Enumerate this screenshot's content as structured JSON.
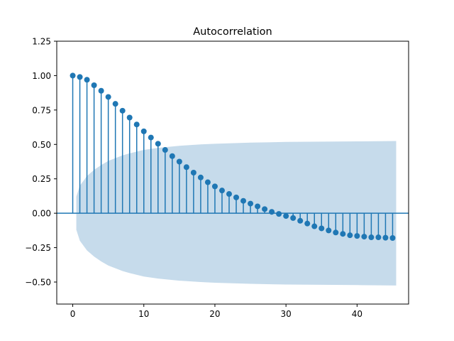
{
  "chart_data": {
    "type": "stem",
    "title": "Autocorrelation",
    "xlabel": "",
    "ylabel": "",
    "xlim": [
      -2.25,
      47.25
    ],
    "ylim": [
      -0.66,
      1.25
    ],
    "xticks": [
      0,
      10,
      20,
      30,
      40
    ],
    "yticks": [
      -0.5,
      -0.25,
      0.0,
      0.25,
      0.5,
      0.75,
      1.0,
      1.25
    ],
    "ytick_labels": [
      "−0.50",
      "−0.25",
      "0.00",
      "0.25",
      "0.50",
      "0.75",
      "1.00",
      "1.25"
    ],
    "grid": false,
    "lags": [
      0,
      1,
      2,
      3,
      4,
      5,
      6,
      7,
      8,
      9,
      10,
      11,
      12,
      13,
      14,
      15,
      16,
      17,
      18,
      19,
      20,
      21,
      22,
      23,
      24,
      25,
      26,
      27,
      28,
      29,
      30,
      31,
      32,
      33,
      34,
      35,
      36,
      37,
      38,
      39,
      40,
      41,
      42,
      43,
      44,
      45
    ],
    "acf": [
      1.0,
      0.99,
      0.97,
      0.93,
      0.89,
      0.845,
      0.795,
      0.745,
      0.695,
      0.645,
      0.595,
      0.55,
      0.505,
      0.46,
      0.415,
      0.375,
      0.335,
      0.295,
      0.26,
      0.225,
      0.195,
      0.165,
      0.14,
      0.115,
      0.09,
      0.07,
      0.05,
      0.03,
      0.01,
      -0.005,
      -0.02,
      -0.035,
      -0.055,
      -0.075,
      -0.095,
      -0.11,
      -0.125,
      -0.14,
      -0.15,
      -0.16,
      -0.165,
      -0.17,
      -0.175,
      -0.175,
      -0.178,
      -0.18
    ],
    "confint_x": [
      0.5,
      1,
      2,
      3,
      4,
      5,
      6,
      7,
      8,
      10,
      12,
      15,
      18,
      20,
      25,
      30,
      35,
      40,
      45.5
    ],
    "confint_upper": [
      0.12,
      0.2,
      0.27,
      0.315,
      0.35,
      0.38,
      0.4,
      0.42,
      0.435,
      0.46,
      0.475,
      0.49,
      0.5,
      0.505,
      0.513,
      0.518,
      0.52,
      0.522,
      0.525
    ],
    "colors": {
      "stem": "#1f77b4",
      "band": "#c6dbeb",
      "baseline": "#1f77b4"
    }
  }
}
